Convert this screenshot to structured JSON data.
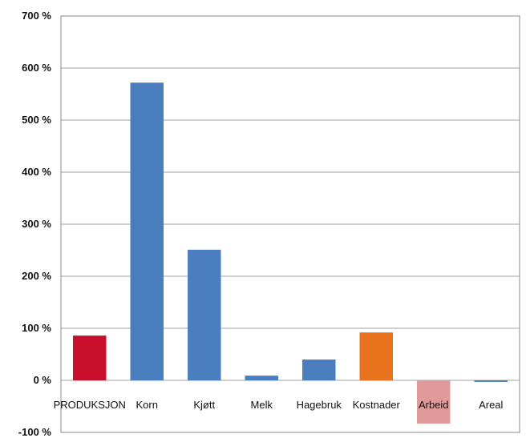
{
  "chart_data": {
    "type": "bar",
    "title": "",
    "xlabel": "",
    "ylabel": "",
    "ylim": [
      -100,
      700
    ],
    "yticks": [
      -100,
      0,
      100,
      200,
      300,
      400,
      500,
      600,
      700
    ],
    "ytick_labels": [
      "-100 %",
      "0 %",
      "100 %",
      "200 %",
      "300 %",
      "400 %",
      "500 %",
      "600 %",
      "700 %"
    ],
    "grid": true,
    "legend": "none",
    "categories": [
      "PRODUKSJON",
      "Korn",
      "Kjøtt",
      "Melk",
      "Hagebruk",
      "Kostnader",
      "Arbeid",
      "Areal"
    ],
    "values": [
      86,
      572,
      251,
      9,
      40,
      92,
      -83,
      -3
    ],
    "colors": [
      "#c8102e",
      "#4a7ebf",
      "#4a7ebf",
      "#4a7ebf",
      "#4a7ebf",
      "#e8731c",
      "#e09a9a",
      "#4a7ebf"
    ],
    "gridline_color": "#a0a0a0",
    "plot_border_color": "#8a8a8a"
  }
}
